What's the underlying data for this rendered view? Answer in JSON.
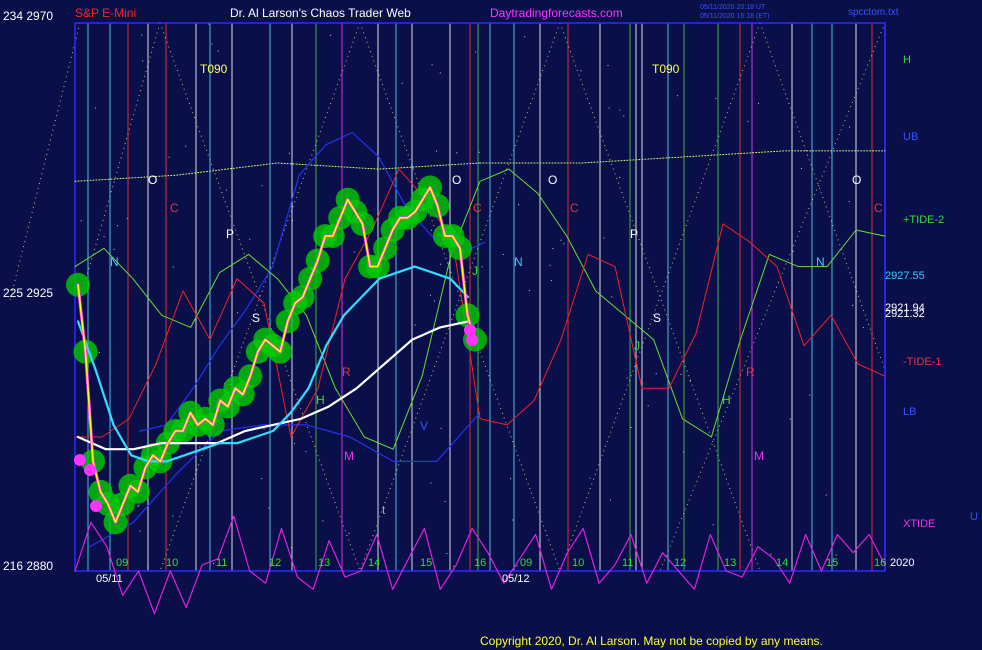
{
  "header": {
    "instrument": "S&P E-Mini",
    "title": "Dr. Al Larson's Chaos Trader Web",
    "site": "Daytradingforecasts.com",
    "stamp1": "05/11/2020 20:18 UT",
    "stamp2": "05/11/2020 16:18 (ET)",
    "file": "spcctom.txt"
  },
  "footer": {
    "copyright": "Copyright 2020, Dr. Al Larson. May not be copied by any means."
  },
  "colors": {
    "background": "#0a0f4a",
    "frame": "#2a2aff",
    "price_yellow": "#ffff00",
    "price_magenta": "#ff33ff",
    "envelope_green": "#00cc00",
    "avg_cyan": "#33ddff",
    "avg_white": "#ffffff",
    "tide_pos": "#66dd33",
    "tide_neg": "#ee2222",
    "band_blue": "#2233ee",
    "xtide": "#dd22dd",
    "T090": "#ccff66"
  },
  "chart_data": {
    "type": "line",
    "ylim": [
      2880,
      2970
    ],
    "y_tick_labels": [
      "234  2970",
      "225  2925",
      "216  2880"
    ],
    "hour_labels": [
      "09",
      "10",
      "11",
      "12",
      "13",
      "14",
      "15",
      "16",
      "09",
      "10",
      "11",
      "12",
      "13",
      "14",
      "15",
      "16"
    ],
    "date_labels": [
      "05/11",
      "05/12"
    ],
    "year_label": "2020",
    "right_labels": [
      "H",
      "UB",
      "+TIDE-2",
      "2927.55",
      "2921.94",
      "2921.32",
      "-TIDE-1",
      "LB",
      "XTIDE"
    ],
    "in_plot_labels": [
      "T090",
      "T090",
      "O",
      "O",
      "O",
      "O",
      "C",
      "C",
      "C",
      "C",
      "P",
      "P",
      "N",
      "N",
      "N",
      "S",
      "S",
      "H",
      "H",
      "R",
      "R",
      "M",
      "M",
      "J",
      "J",
      "V",
      "t"
    ],
    "series": [
      {
        "name": "price",
        "values": [
          2927,
          2916,
          2898,
          2893,
          2891,
          2888,
          2891,
          2894,
          2893,
          2897,
          2899,
          2898,
          2901,
          2903,
          2903,
          2906,
          2904,
          2905,
          2904,
          2908,
          2907,
          2910,
          2909,
          2912,
          2916,
          2918,
          2917,
          2916,
          2921,
          2924,
          2925,
          2928,
          2931,
          2935,
          2935,
          2938,
          2941,
          2939,
          2937,
          2930,
          2930,
          2933,
          2936,
          2938,
          2938,
          2939,
          2941,
          2943,
          2940,
          2935,
          2935,
          2933,
          2922,
          2918
        ]
      },
      {
        "name": "cyan_average",
        "values": [
          2921,
          2913,
          2904,
          2899,
          2898,
          2898,
          2899,
          2900,
          2901,
          2901,
          2902,
          2903,
          2906,
          2910,
          2917,
          2922,
          2925,
          2928,
          2929,
          2930,
          2929,
          2928,
          2925
        ]
      },
      {
        "name": "white_average",
        "values": [
          2902,
          2900,
          2900,
          2901,
          2901,
          2901,
          2903,
          2904,
          2905,
          2907,
          2910,
          2914,
          2918,
          2920,
          2921
        ]
      },
      {
        "name": "+TIDE-2",
        "values": [
          2930,
          2933,
          2928,
          2922,
          2920,
          2929,
          2932,
          2928,
          2922,
          2910,
          2902,
          2900,
          2912,
          2932,
          2944,
          2946,
          2942,
          2935,
          2926,
          2922,
          2918,
          2905,
          2902,
          2918,
          2932,
          2930,
          2930,
          2936,
          2935
        ]
      },
      {
        "name": "-TIDE-1",
        "values": [
          2902,
          2902,
          2905,
          2914,
          2926,
          2918,
          2928,
          2924,
          2902,
          2910,
          2928,
          2936,
          2946,
          2941,
          2934,
          2905,
          2904,
          2908,
          2918,
          2932,
          2930,
          2910,
          2910,
          2919,
          2937,
          2934,
          2930,
          2917,
          2922,
          2914,
          2912
        ]
      },
      {
        "name": "UB",
        "values": [
          2903,
          2904,
          2910,
          2917,
          2923,
          2930,
          2945,
          2950,
          2952,
          2948,
          2940,
          2935,
          2932,
          2934
        ]
      },
      {
        "name": "LB",
        "values": [
          2884,
          2888,
          2896,
          2903,
          2904,
          2904,
          2902,
          2898,
          2898,
          2906
        ]
      },
      {
        "name": "XTIDE",
        "values": [
          2880,
          2888,
          2884,
          2876,
          2880,
          2873,
          2880,
          2874,
          2881,
          2882,
          2889,
          2880,
          2878,
          2887,
          2879,
          2877,
          2885,
          2879,
          2880,
          2886,
          2877,
          2882,
          2887,
          2877,
          2881,
          2887,
          2883,
          2878,
          2882,
          2886,
          2877,
          2883,
          2887,
          2878,
          2881,
          2886,
          2878,
          2883,
          2880,
          2877,
          2886,
          2880,
          2879,
          2884,
          2882,
          2878,
          2886,
          2880,
          2886,
          2883,
          2886,
          2881
        ]
      },
      {
        "name": "T090",
        "values": [
          2944,
          2945,
          2947,
          2946,
          2947,
          2947,
          2948,
          2949,
          2949
        ]
      }
    ]
  }
}
